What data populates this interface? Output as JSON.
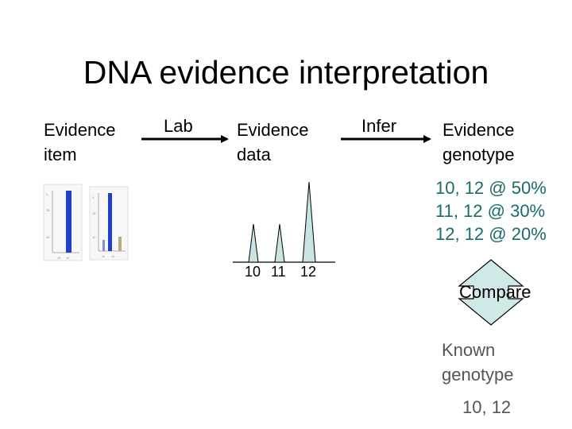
{
  "title": "DNA evidence interpretation",
  "evidence_item": {
    "line1": "Evidence",
    "line2": "item"
  },
  "lab_label": "Lab",
  "evidence_data": {
    "line1": "Evidence",
    "line2": "data"
  },
  "infer_label": "Infer",
  "evidence_genotype": {
    "line1": "Evidence",
    "line2": "genotype"
  },
  "genotype_list": [
    "10, 12 @ 50%",
    "11, 12 @ 30%",
    "12, 12 @ 20%"
  ],
  "peak_labels": [
    "10",
    "11",
    "12"
  ],
  "compare_label": "Compare",
  "known_genotype": {
    "line1": "Known",
    "line2": "genotype",
    "value": "10, 12"
  },
  "colors": {
    "teal": "#1a6b6b",
    "peak_fill": "#c9e3e3",
    "arrow_fill": "#cfe8e8",
    "gel_blue": "#1e3fcf"
  }
}
